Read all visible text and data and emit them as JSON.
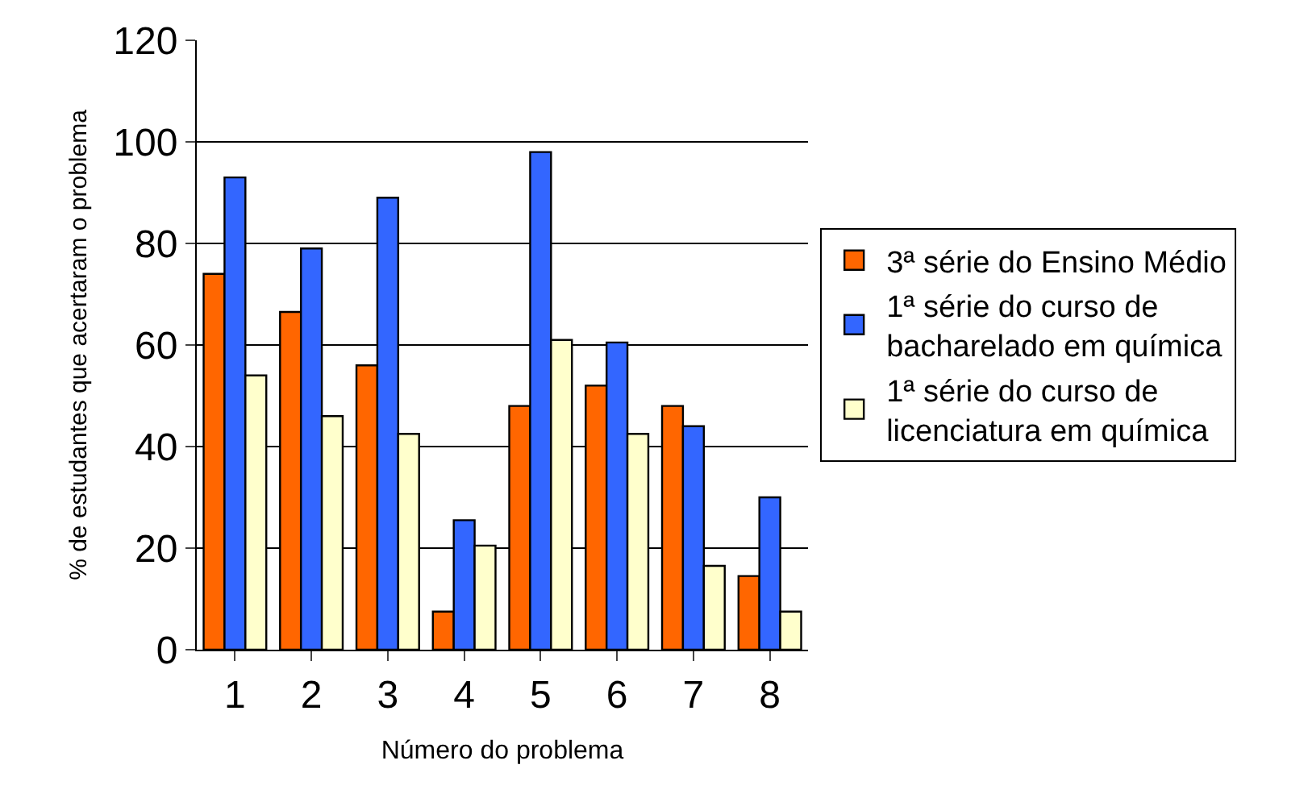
{
  "chart_data": {
    "type": "bar",
    "xlabel": "Número do problema",
    "ylabel": "% de estudantes que acertaram o problema",
    "categories": [
      "1",
      "2",
      "3",
      "4",
      "5",
      "6",
      "7",
      "8"
    ],
    "series": [
      {
        "name": "3ª série do Ensino Médio",
        "color": "#ff6600",
        "values": [
          74,
          66.5,
          56,
          7.5,
          48,
          52,
          48,
          14.5
        ]
      },
      {
        "name": "1ª série do curso de bacharelado em química",
        "color": "#3366ff",
        "values": [
          93,
          79,
          89,
          25.5,
          98,
          60.5,
          44,
          30
        ]
      },
      {
        "name": "1ª série do curso de licenciatura em química",
        "color": "#ffffcc",
        "values": [
          54,
          46,
          42.5,
          20.5,
          61,
          42.5,
          16.5,
          7.5
        ]
      }
    ],
    "ylim": [
      0,
      120
    ],
    "yticks": [
      0,
      20,
      40,
      60,
      80,
      100,
      120
    ],
    "grid": "y",
    "legend": "right"
  }
}
